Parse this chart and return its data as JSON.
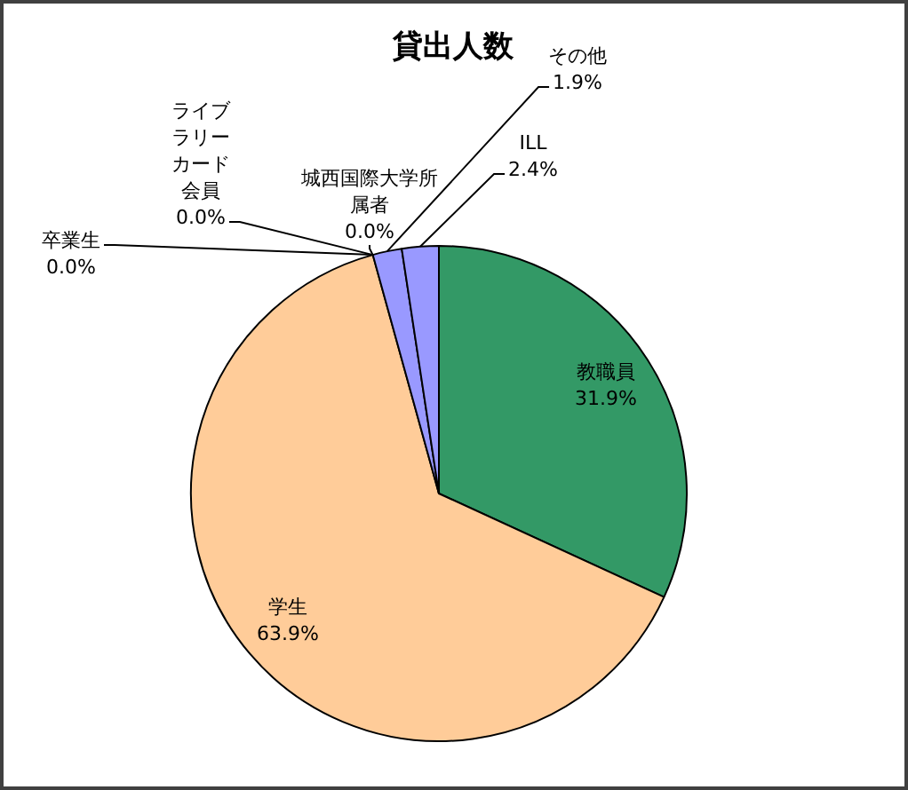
{
  "chart_data": {
    "type": "pie",
    "title": "貸出人数",
    "categories": [
      "教職員",
      "学生",
      "卒業生",
      "ライブラリーカード会員",
      "城西国際大学所属者",
      "その他",
      "ILL"
    ],
    "values": [
      31.9,
      63.9,
      0.0,
      0.0,
      0.0,
      1.9,
      2.4
    ],
    "value_labels": [
      "31.9%",
      "63.9%",
      "0.0%",
      "0.0%",
      "0.0%",
      "1.9%",
      "2.4%"
    ],
    "colors": [
      "#339966",
      "#ffcc99",
      "#9999ff",
      "#9999ff",
      "#9999ff",
      "#9999ff",
      "#9999ff"
    ]
  }
}
